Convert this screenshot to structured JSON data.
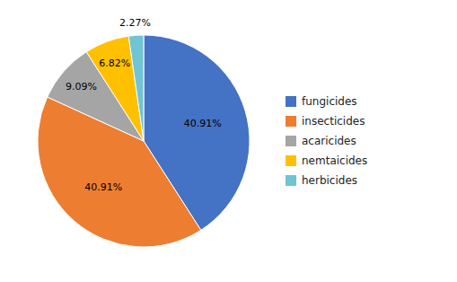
{
  "chart_data": {
    "type": "pie",
    "categories": [
      "fungicides",
      "insecticides",
      "acaricides",
      "nemtaicides",
      "herbicides"
    ],
    "values": [
      40.91,
      40.91,
      9.09,
      6.82,
      2.27
    ],
    "value_labels": [
      "40.91%",
      "40.91%",
      "9.09%",
      "6.82%",
      "2.27%"
    ],
    "colors": [
      "#4472C4",
      "#ED7D31",
      "#A5A5A5",
      "#FFC000",
      "#70C4D4"
    ],
    "data_labels": true,
    "legend": "right"
  }
}
